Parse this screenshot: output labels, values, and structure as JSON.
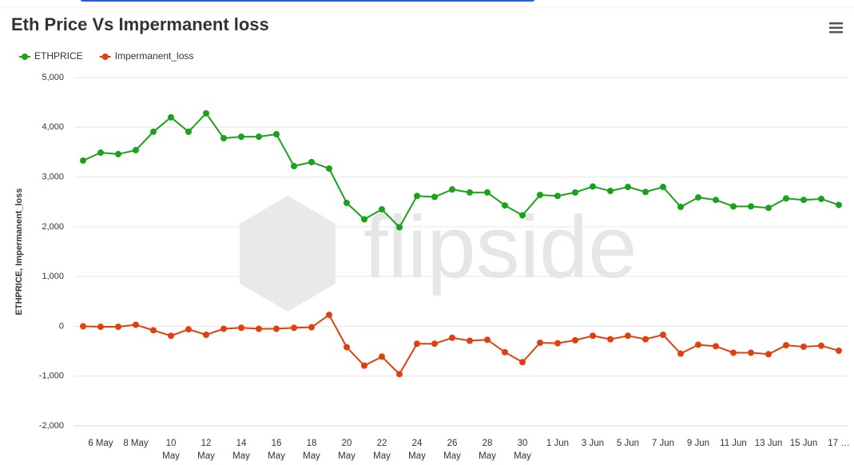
{
  "chart_data": {
    "type": "line",
    "title": "Eth Price Vs Impermanent loss",
    "y_label": "ETHPRICE, Impermanent_loss",
    "watermark": "flipside",
    "categories": [
      null,
      "6 May",
      null,
      "8 May",
      null,
      "10 May",
      null,
      "12 May",
      null,
      "14 May",
      null,
      "16 May",
      null,
      "18 May",
      null,
      "20 May",
      null,
      "22 May",
      null,
      "24 May",
      null,
      "26 May",
      null,
      "28 May",
      null,
      "30 May",
      null,
      "1 Jun",
      null,
      "3 Jun",
      null,
      "5 Jun",
      null,
      "7 Jun",
      null,
      "9 Jun",
      null,
      "11 Jun",
      null,
      "13 Jun",
      null,
      "15 Jun",
      null,
      "17 …"
    ],
    "series": [
      {
        "name": "ETHPRICE",
        "color": "#1aa31a",
        "values": [
          3330,
          3490,
          3460,
          3540,
          3910,
          4200,
          3910,
          4280,
          3780,
          3810,
          3810,
          3860,
          3220,
          3300,
          3170,
          2480,
          2150,
          2350,
          1990,
          2620,
          2600,
          2750,
          2690,
          2690,
          2430,
          2230,
          2640,
          2620,
          2690,
          2810,
          2720,
          2800,
          2700,
          2800,
          2400,
          2590,
          2540,
          2410,
          2410,
          2380,
          2570,
          2540,
          2560,
          2440
        ]
      },
      {
        "name": "Impermanent_loss",
        "color": "#e0400f",
        "values": [
          0,
          -10,
          -10,
          30,
          -80,
          -190,
          -60,
          -170,
          -50,
          -30,
          -50,
          -50,
          -30,
          -20,
          230,
          -420,
          -790,
          -610,
          -960,
          -350,
          -350,
          -230,
          -290,
          -270,
          -520,
          -720,
          -330,
          -340,
          -280,
          -190,
          -260,
          -190,
          -260,
          -170,
          -550,
          -370,
          -400,
          -530,
          -530,
          -560,
          -380,
          -410,
          -390,
          -490
        ]
      }
    ],
    "ylim": [
      -2000,
      5000
    ],
    "yticks": [
      {
        "value": -2000,
        "label": "-2,000"
      },
      {
        "value": -1000,
        "label": "-1,000"
      },
      0,
      {
        "value": 1000,
        "label": "1,000"
      },
      {
        "value": 2000,
        "label": "2,000"
      },
      {
        "value": 3000,
        "label": "3,000"
      },
      {
        "value": 4000,
        "label": "4,000"
      },
      {
        "value": 5000,
        "label": "5,000"
      }
    ],
    "grid": true
  }
}
